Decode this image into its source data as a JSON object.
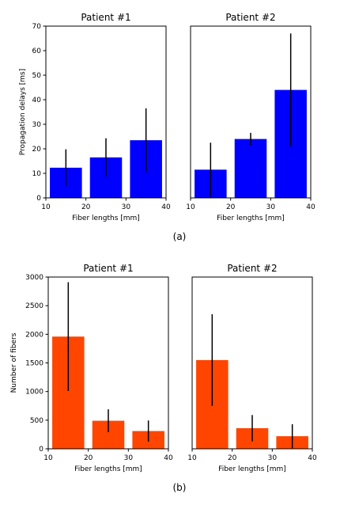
{
  "chart_data": [
    {
      "type": "bar",
      "title": "Patient #1",
      "xlabel": "Fiber lengths [mm]",
      "ylabel": "Propagation delays [ms]",
      "x": [
        15,
        25,
        35
      ],
      "values": [
        12.3,
        16.5,
        23.5
      ],
      "errors": [
        7.5,
        7.8,
        13.0
      ],
      "xlim": [
        10,
        40
      ],
      "ylim": [
        0,
        70
      ],
      "xticks": [
        10,
        20,
        30,
        40
      ],
      "yticks": [
        0,
        10,
        20,
        30,
        40,
        50,
        60,
        70
      ],
      "color": "#0000ff"
    },
    {
      "type": "bar",
      "title": "Patient #2",
      "xlabel": "Fiber lengths [mm]",
      "ylabel": "",
      "x": [
        15,
        25,
        35
      ],
      "values": [
        11.5,
        24.0,
        44.0
      ],
      "errors": [
        11.0,
        2.5,
        23.0
      ],
      "xlim": [
        10,
        40
      ],
      "ylim": [
        0,
        70
      ],
      "xticks": [
        10,
        20,
        30,
        40
      ],
      "yticks": [],
      "color": "#0000ff"
    },
    {
      "type": "bar",
      "title": "Patient #1",
      "xlabel": "Fiber lengths [mm]",
      "ylabel": "Number of fibers",
      "x": [
        15,
        25,
        35
      ],
      "values": [
        1960,
        490,
        310
      ],
      "errors": [
        950,
        200,
        185
      ],
      "xlim": [
        10,
        40
      ],
      "ylim": [
        0,
        3000
      ],
      "xticks": [
        10,
        20,
        30,
        40
      ],
      "yticks": [
        0,
        500,
        1000,
        1500,
        2000,
        2500,
        3000
      ],
      "color": "#ff4500"
    },
    {
      "type": "bar",
      "title": "Patient #2",
      "xlabel": "Fiber lengths [mm]",
      "ylabel": "",
      "x": [
        15,
        25,
        35
      ],
      "values": [
        1550,
        360,
        220
      ],
      "errors": [
        800,
        230,
        210
      ],
      "xlim": [
        10,
        40
      ],
      "ylim": [
        0,
        3000
      ],
      "xticks": [
        10,
        20,
        30,
        40
      ],
      "yticks": [],
      "color": "#ff4500"
    }
  ],
  "captions": {
    "top": "(a)",
    "bottom": "(b)"
  }
}
